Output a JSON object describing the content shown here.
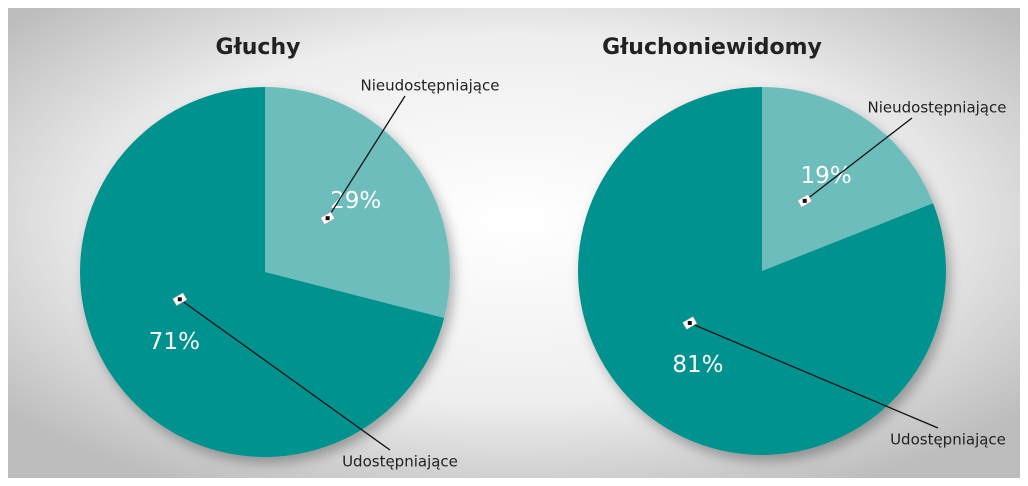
{
  "chart_data": [
    {
      "type": "pie",
      "title": "Głuchy",
      "categories": [
        "Nieudostępniające",
        "Udostępniające"
      ],
      "values": [
        29,
        71
      ],
      "value_labels": [
        "29%",
        "71%"
      ],
      "colors": [
        "#6dbdbd",
        "#00928f"
      ]
    },
    {
      "type": "pie",
      "title": "Głuchoniewidomy",
      "categories": [
        "Nieudostępniające",
        "Udostępniające"
      ],
      "values": [
        19,
        81
      ],
      "value_labels": [
        "19%",
        "81%"
      ],
      "colors": [
        "#6dbdbd",
        "#00928f"
      ]
    }
  ]
}
